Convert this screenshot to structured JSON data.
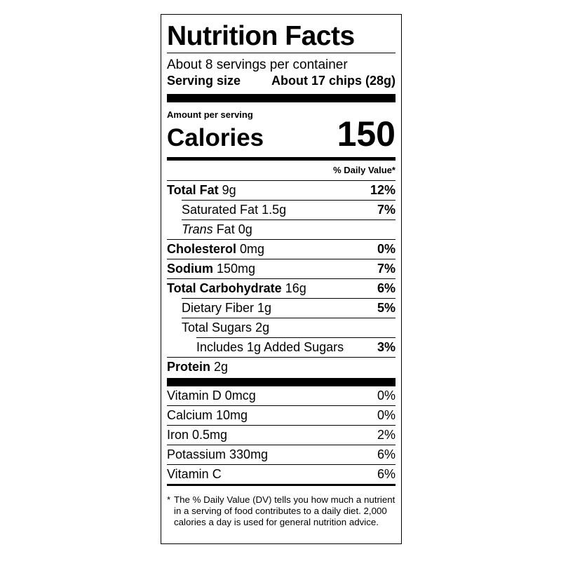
{
  "title": "Nutrition Facts",
  "servings": "About 8 servings per container",
  "serving_size": {
    "label": "Serving size",
    "value": "About 17 chips (28g)"
  },
  "amount_per_serving": "Amount per serving",
  "calories": {
    "label": "Calories",
    "value": "150"
  },
  "dv_header": "% Daily Value*",
  "nutrients": [
    {
      "name": "Total Fat",
      "amount": "9g",
      "dv": "12%",
      "bold": true,
      "indent": 0
    },
    {
      "name": "Saturated Fat",
      "amount": "1.5g",
      "dv": "7%",
      "bold": false,
      "indent": 1
    },
    {
      "italic_prefix": "Trans",
      "name": "Fat",
      "amount": "0g",
      "bold": false,
      "indent": 1
    },
    {
      "name": "Cholesterol",
      "amount": "0mg",
      "dv": "0%",
      "bold": true,
      "indent": 0
    },
    {
      "name": "Sodium",
      "amount": "150mg",
      "dv": "7%",
      "bold": true,
      "indent": 0
    },
    {
      "name": "Total Carbohydrate",
      "amount": "16g",
      "dv": "6%",
      "bold": true,
      "indent": 0
    },
    {
      "name": "Dietary Fiber",
      "amount": "1g",
      "dv": "5%",
      "bold": false,
      "indent": 1
    },
    {
      "name": "Total Sugars",
      "amount": "2g",
      "bold": false,
      "indent": 1
    },
    {
      "name": "Includes 1g Added Sugars",
      "dv": "3%",
      "bold": false,
      "indent": 2
    },
    {
      "name": "Protein",
      "amount": "2g",
      "bold": true,
      "indent": 0
    }
  ],
  "vitamins": [
    {
      "name": "Vitamin D 0mcg",
      "dv": "0%"
    },
    {
      "name": "Calcium 10mg",
      "dv": "0%"
    },
    {
      "name": "Iron 0.5mg",
      "dv": "2%"
    },
    {
      "name": "Potassium 330mg",
      "dv": "6%"
    },
    {
      "name": "Vitamin C",
      "dv": "6%"
    }
  ],
  "footnote_mark": "*",
  "footnote": "The % Daily Value (DV) tells you how much a nutrient in a serving of food contributes to a daily diet. 2,000 calories a day is used for general nutrition advice."
}
